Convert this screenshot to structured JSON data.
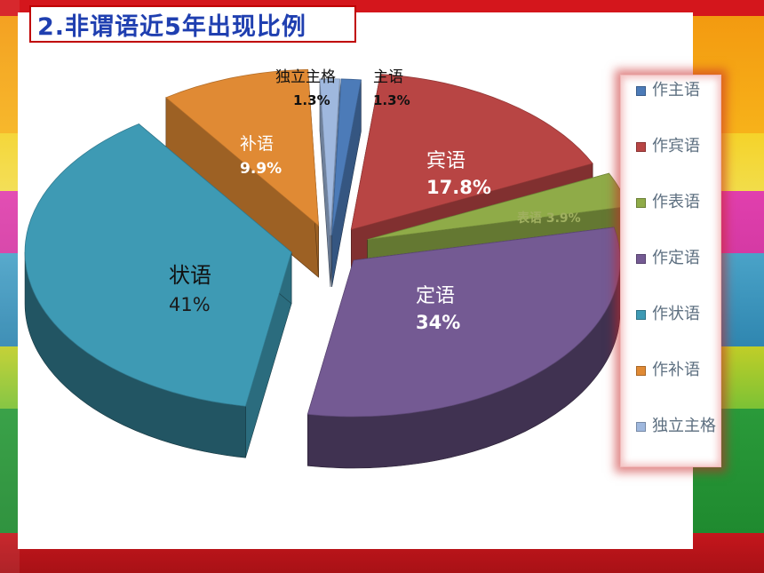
{
  "slide": {
    "title": "2.非谓语近5年出现比例"
  },
  "chart_data": {
    "type": "pie",
    "title": "",
    "slices": [
      {
        "name": "主语",
        "legend": "作主语",
        "value": 1.3,
        "label_pct": "1.3%",
        "color": "#4c7bb8"
      },
      {
        "name": "宾语",
        "legend": "作宾语",
        "value": 17.8,
        "label_pct": "17.8%",
        "color": "#b84544"
      },
      {
        "name": "表语",
        "legend": "作表语",
        "value": 3.9,
        "label_pct": "3.9%",
        "color": "#8fab48"
      },
      {
        "name": "定语",
        "legend": "作定语",
        "value": 34,
        "label_pct": "34%",
        "color": "#745a93"
      },
      {
        "name": "状语",
        "legend": "作状语",
        "value": 41,
        "label_pct": "41%",
        "color": "#3e9ab4"
      },
      {
        "name": "补语",
        "legend": "作补语",
        "value": 9.9,
        "label_pct": "9.9%",
        "color": "#e08a34"
      },
      {
        "name": "独立主格",
        "legend": "独立主格",
        "value": 1.3,
        "label_pct": "1.3%",
        "color": "#9fb8de"
      }
    ],
    "legend_position": "right"
  }
}
